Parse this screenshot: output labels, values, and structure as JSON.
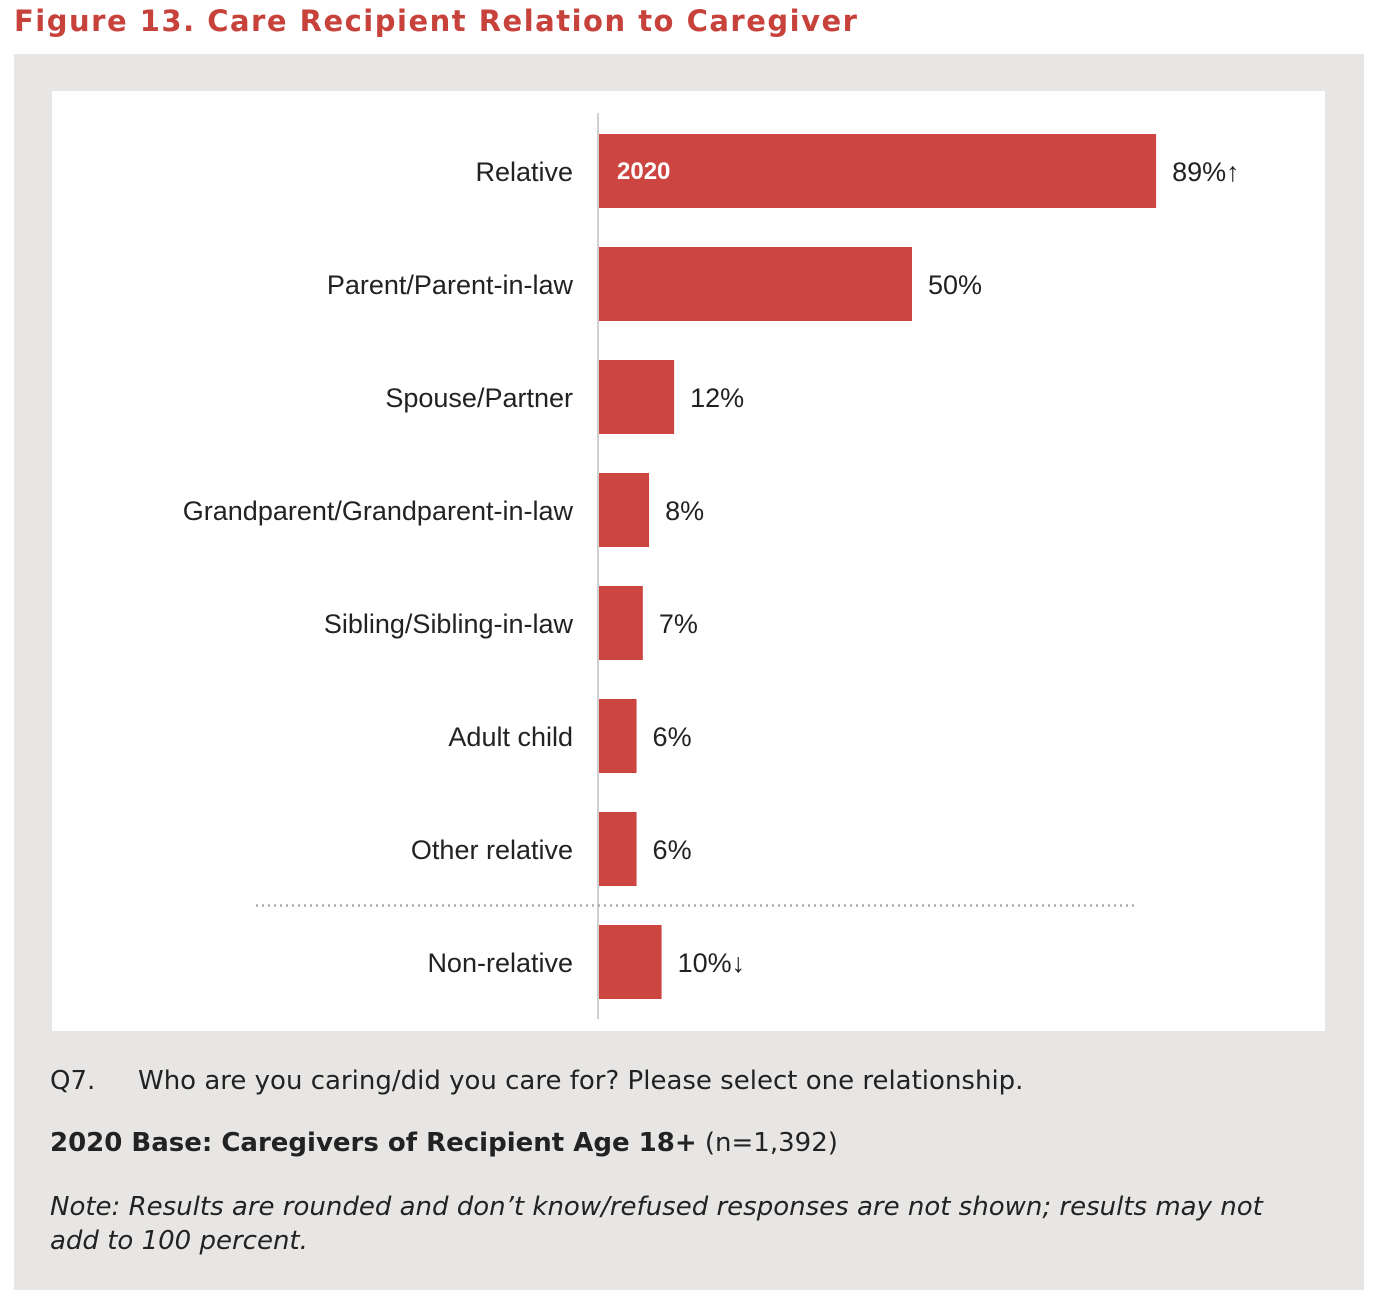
{
  "figure_title": "Figure 13. Care Recipient Relation to Caregiver",
  "colors": {
    "bar": "#cc4540",
    "title": "#c8423c",
    "panel_bg": "#e7e6e4"
  },
  "chart_data": {
    "type": "bar",
    "orientation": "horizontal",
    "series_label": "2020",
    "categories": [
      "Relative",
      "Parent/Parent-in-law",
      "Spouse/Partner",
      "Grandparent/Grandparent-in-law",
      "Sibling/Sibling-in-law",
      "Adult child",
      "Other relative",
      "Non-relative"
    ],
    "values": [
      89,
      50,
      12,
      8,
      7,
      6,
      6,
      10
    ],
    "data_labels": [
      "89%↑",
      "50%",
      "12%",
      "8%",
      "7%",
      "6%",
      "6%",
      "10%↓"
    ],
    "unit": "%",
    "xlim": [
      0,
      100
    ],
    "separator_before": "Non-relative",
    "grid": false
  },
  "caption": {
    "question_number": "Q7.",
    "question_text": "Who are you caring/did you care for? Please select one relationship.",
    "base_bold": "2020 Base: Caregivers of Recipient Age 18+",
    "base_n": " (n=1,392)",
    "note": "Note: Results are rounded and don’t know/refused responses are not shown; results may not add to 100 percent."
  }
}
